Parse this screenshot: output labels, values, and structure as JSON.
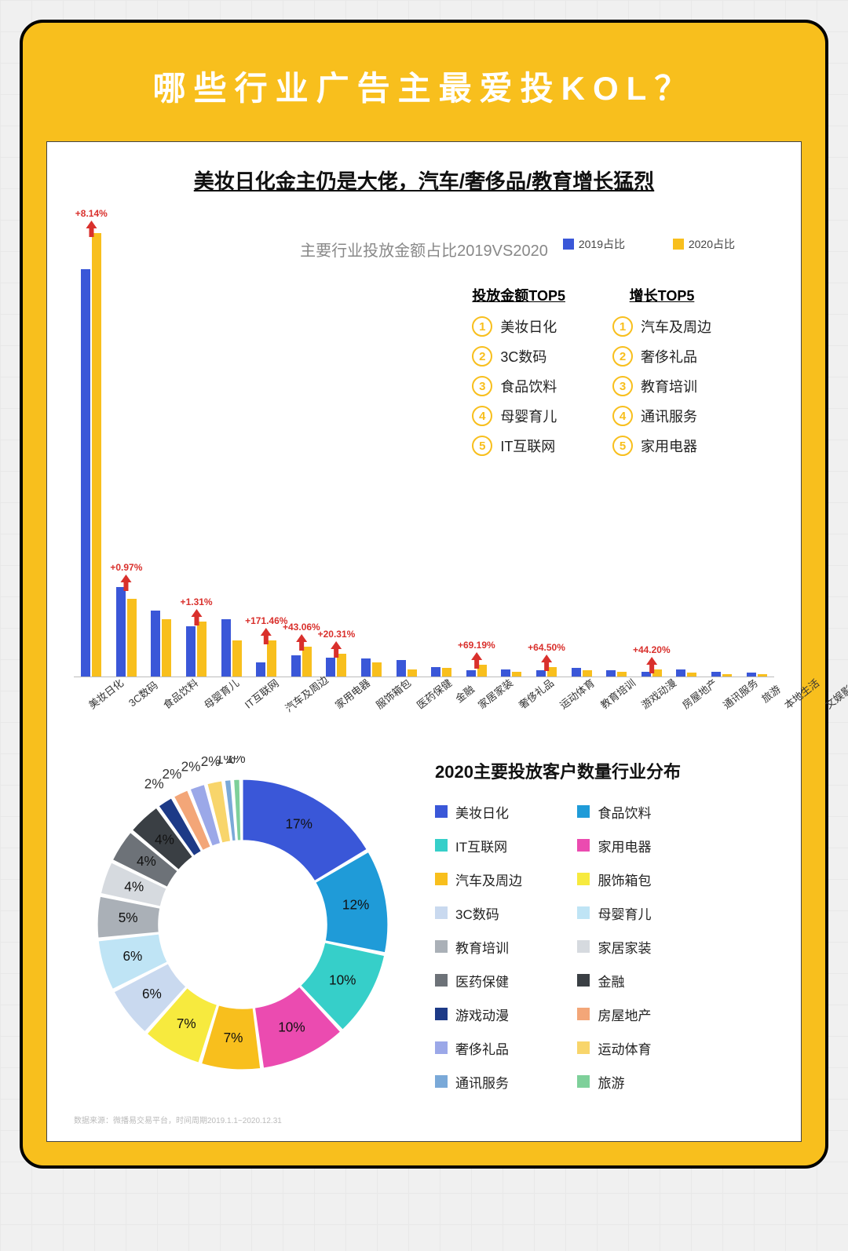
{
  "page": {
    "title": "哪些行业广告主最爱投KOL？"
  },
  "bar": {
    "subtitle": "美妆日化金主仍是大佬，汽车/奢侈品/教育增长猛烈",
    "caption": "主要行业投放金额占比2019VS2020",
    "legend_a": "2019占比",
    "legend_b": "2020占比",
    "colors": {
      "a": "#3a57d8",
      "b": "#f8bf1d",
      "arrow": "#d9302c"
    },
    "max": 38,
    "categories": [
      {
        "label": "美妆日化",
        "a": 34,
        "b": 37,
        "grow": "+8.14%"
      },
      {
        "label": "3C数码",
        "a": 7.5,
        "b": 6.5,
        "grow": "+0.97%"
      },
      {
        "label": "食品饮料",
        "a": 5.5,
        "b": 4.8,
        "grow": null
      },
      {
        "label": "母婴育儿",
        "a": 4.2,
        "b": 4.6,
        "grow": "+1.31%"
      },
      {
        "label": "IT互联网",
        "a": 4.8,
        "b": 3,
        "grow": null
      },
      {
        "label": "汽车及周边",
        "a": 1.2,
        "b": 3,
        "grow": "+171.46%"
      },
      {
        "label": "家用电器",
        "a": 1.8,
        "b": 2.5,
        "grow": "+43.06%"
      },
      {
        "label": "服饰箱包",
        "a": 1.6,
        "b": 1.9,
        "grow": "+20.31%"
      },
      {
        "label": "医药保健",
        "a": 1.5,
        "b": 1.2,
        "grow": null
      },
      {
        "label": "金融",
        "a": 1.4,
        "b": 0.6,
        "grow": null
      },
      {
        "label": "家居家装",
        "a": 0.8,
        "b": 0.7,
        "grow": null
      },
      {
        "label": "奢侈礼品",
        "a": 0.5,
        "b": 1.0,
        "grow": "+69.19%"
      },
      {
        "label": "运动体育",
        "a": 0.6,
        "b": 0.4,
        "grow": null
      },
      {
        "label": "教育培训",
        "a": 0.5,
        "b": 0.8,
        "grow": "+64.50%"
      },
      {
        "label": "游戏动漫",
        "a": 0.7,
        "b": 0.5,
        "grow": null
      },
      {
        "label": "房屋地产",
        "a": 0.5,
        "b": 0.4,
        "grow": null
      },
      {
        "label": "通讯服务",
        "a": 0.4,
        "b": 0.6,
        "grow": "+44.20%"
      },
      {
        "label": "旅游",
        "a": 0.6,
        "b": 0.3,
        "grow": null
      },
      {
        "label": "本地生活",
        "a": 0.4,
        "b": 0.2,
        "grow": null
      },
      {
        "label": "文娱影视",
        "a": 0.3,
        "b": 0.2,
        "grow": null
      }
    ],
    "top5": {
      "left_title": "投放金额TOP5",
      "right_title": "增长TOP5",
      "left": [
        "美妆日化",
        "3C数码",
        "食品饮料",
        "母婴育儿",
        "IT互联网"
      ],
      "right": [
        "汽车及周边",
        "奢侈礼品",
        "教育培训",
        "通讯服务",
        "家用电器"
      ]
    }
  },
  "donut": {
    "title": "2020主要投放客户数量行业分布",
    "inner_ratio": 0.58,
    "gap_deg": 1.2,
    "slices": [
      {
        "label": "美妆日化",
        "pct": 17,
        "color": "#3a57d8"
      },
      {
        "label": "食品饮料",
        "pct": 12,
        "color": "#1f9bd8"
      },
      {
        "label": "IT互联网",
        "pct": 10,
        "color": "#36cfc9"
      },
      {
        "label": "家用电器",
        "pct": 10,
        "color": "#eb4bb0"
      },
      {
        "label": "汽车及周边",
        "pct": 7,
        "color": "#f8bf1d"
      },
      {
        "label": "服饰箱包",
        "pct": 7,
        "color": "#f7ea3e"
      },
      {
        "label": "3C数码",
        "pct": 6,
        "color": "#c9d9ef"
      },
      {
        "label": "母婴育儿",
        "pct": 6,
        "color": "#bfe4f5"
      },
      {
        "label": "教育培训",
        "pct": 5,
        "color": "#aab0b7"
      },
      {
        "label": "家居家装",
        "pct": 4,
        "color": "#d6dadf"
      },
      {
        "label": "医药保健",
        "pct": 4,
        "color": "#6d7278"
      },
      {
        "label": "金融",
        "pct": 4,
        "color": "#3a3f44"
      },
      {
        "label": "游戏动漫",
        "pct": 2,
        "color": "#1d3a87"
      },
      {
        "label": "房屋地产",
        "pct": 2,
        "color": "#f3a678"
      },
      {
        "label": "奢侈礼品",
        "pct": 2,
        "color": "#9ba8e8"
      },
      {
        "label": "运动体育",
        "pct": 2,
        "color": "#f8d56b"
      },
      {
        "label": "通讯服务",
        "pct": 1,
        "color": "#7aa9d8"
      },
      {
        "label": "旅游",
        "pct": 1,
        "color": "#7ed09a"
      }
    ],
    "legend_order": [
      [
        "美妆日化",
        "食品饮料"
      ],
      [
        "IT互联网",
        "家用电器"
      ],
      [
        "汽车及周边",
        "服饰箱包"
      ],
      [
        "3C数码",
        "母婴育儿"
      ],
      [
        "教育培训",
        "家居家装"
      ],
      [
        "医药保健",
        "金融"
      ],
      [
        "游戏动漫",
        "房屋地产"
      ],
      [
        "奢侈礼品",
        "运动体育"
      ],
      [
        "通讯服务",
        "旅游"
      ]
    ]
  },
  "foot": "数据来源：微播易交易平台，时间周期2019.1.1~2020.12.31"
}
